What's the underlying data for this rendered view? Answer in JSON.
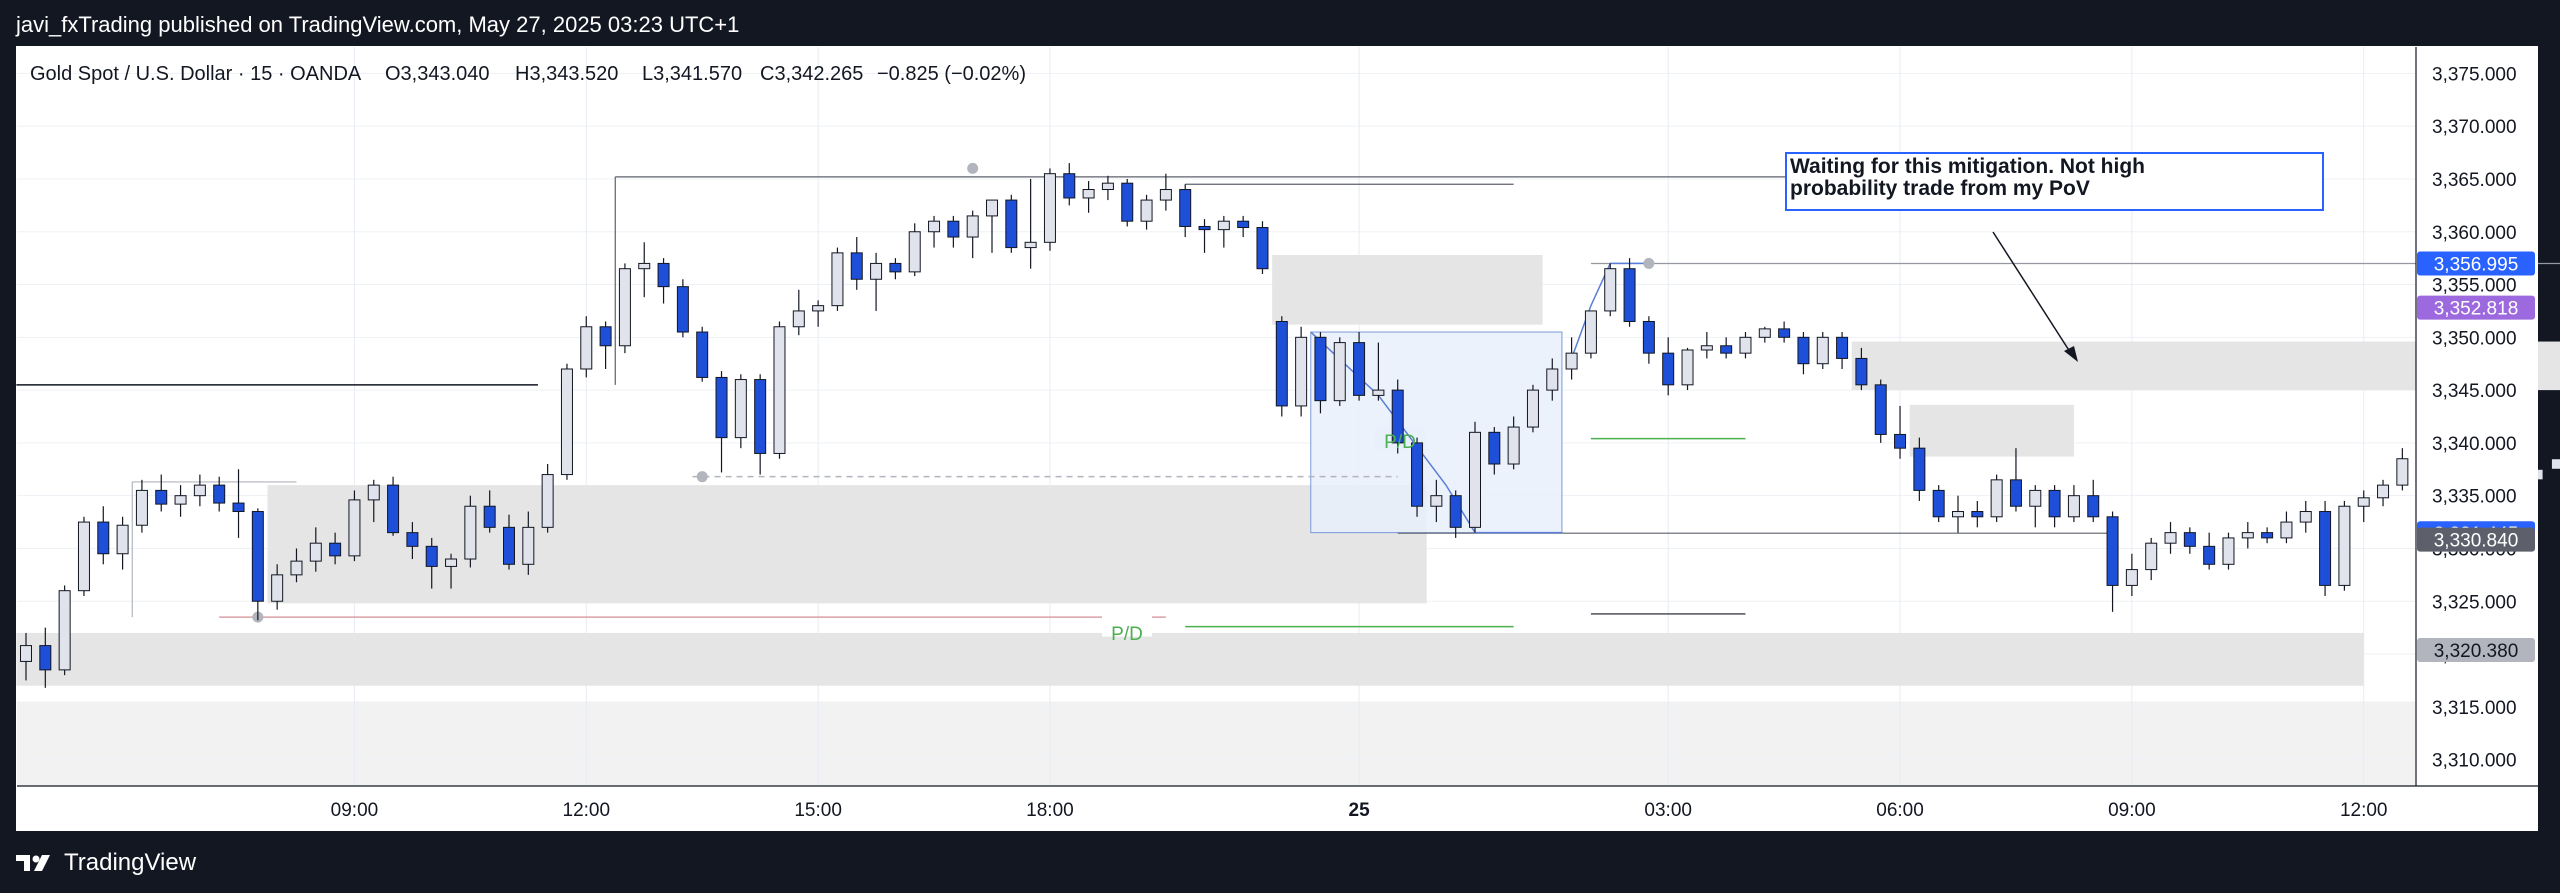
{
  "header": {
    "published_by": "javi_fxTrading published on TradingView.com, May 27, 2025 03:23 UTC+1"
  },
  "footer": {
    "brand": "TradingView"
  },
  "colors": {
    "bull_fill": "#e0e3eb",
    "bull_border": "#131722",
    "bear_fill": "#1e4fd8",
    "zone": "#dddddd",
    "pd_green": "#4caf50",
    "range_blue": "#5b7fd8",
    "label_blue": "#2962ff",
    "label_purple": "#9c6ade",
    "label_gray": "#5d606b",
    "label_gray_light": "#b2b5be"
  },
  "chart_data": {
    "type": "candlestick",
    "symbol_line": {
      "name": "Gold Spot / U.S. Dollar · 15 · OANDA",
      "open": "O3,343.040",
      "high": "H3,343.520",
      "low": "L3,341.570",
      "close": "C3,342.265",
      "change": "−0.825 (−0.02%)"
    },
    "ylim": [
      3307.5,
      3377.5
    ],
    "y_ticks": [
      "3,310.000",
      "3,315.000",
      "3,320.000",
      "3,325.000",
      "3,330.000",
      "3,335.000",
      "3,340.000",
      "3,345.000",
      "3,350.000",
      "3,355.000",
      "3,360.000",
      "3,365.000",
      "3,370.000",
      "3,375.000"
    ],
    "y_tick_values": [
      3310,
      3315,
      3320,
      3325,
      3330,
      3335,
      3340,
      3345,
      3350,
      3355,
      3360,
      3365,
      3370,
      3375
    ],
    "x_ticks": [
      "09:00",
      "12:00",
      "15:00",
      "18:00",
      "25",
      "03:00",
      "06:00",
      "09:00",
      "12:00",
      "15:00",
      "18:00"
    ],
    "x_tick_index": [
      17,
      29,
      41,
      53,
      69,
      85,
      97,
      109,
      121,
      133,
      145
    ],
    "price_labels": [
      {
        "text": "3,356.995",
        "value": 3356.995,
        "color": "blue"
      },
      {
        "text": "3,352.818",
        "value": 3352.818,
        "color": "purple"
      },
      {
        "text": "3,331.445",
        "value": 3331.445,
        "color": "blue"
      },
      {
        "text": "3,330.840",
        "value": 3330.84,
        "color": "gray"
      },
      {
        "text": "3,320.380",
        "value": 3320.38,
        "color": "graylight"
      }
    ],
    "annotation": "Waiting for this mitigation. Not high probability trade from my PoV",
    "pd_labels": [
      "P/D",
      "P/D"
    ],
    "candles": [
      [
        3319.3,
        3322.0,
        3317.5,
        3320.8
      ],
      [
        3320.8,
        3322.5,
        3316.8,
        3318.5
      ],
      [
        3318.5,
        3326.5,
        3318.0,
        3326.0
      ],
      [
        3326.0,
        3333.0,
        3325.5,
        3332.5
      ],
      [
        3332.5,
        3334.0,
        3328.5,
        3329.5
      ],
      [
        3329.5,
        3333.0,
        3328.0,
        3332.2
      ],
      [
        3332.2,
        3336.5,
        3331.5,
        3335.5
      ],
      [
        3335.5,
        3337.0,
        3333.5,
        3334.2
      ],
      [
        3334.2,
        3336.0,
        3333.0,
        3335.0
      ],
      [
        3335.0,
        3337.0,
        3334.0,
        3336.0
      ],
      [
        3336.0,
        3336.8,
        3333.5,
        3334.3
      ],
      [
        3334.3,
        3337.5,
        3331.0,
        3333.5
      ],
      [
        3333.5,
        3333.8,
        3323.2,
        3325.0
      ],
      [
        3325.0,
        3328.5,
        3324.2,
        3327.5
      ],
      [
        3327.5,
        3330.0,
        3326.8,
        3328.8
      ],
      [
        3328.8,
        3332.0,
        3327.8,
        3330.5
      ],
      [
        3330.5,
        3331.5,
        3328.5,
        3329.3
      ],
      [
        3329.3,
        3335.5,
        3328.8,
        3334.6
      ],
      [
        3334.6,
        3336.5,
        3332.5,
        3336.0
      ],
      [
        3336.0,
        3336.8,
        3331.2,
        3331.5
      ],
      [
        3331.5,
        3332.5,
        3329.0,
        3330.2
      ],
      [
        3330.2,
        3331.0,
        3326.2,
        3328.3
      ],
      [
        3328.3,
        3329.5,
        3326.2,
        3329.0
      ],
      [
        3329.0,
        3335.0,
        3328.2,
        3334.0
      ],
      [
        3334.0,
        3335.5,
        3331.5,
        3332.0
      ],
      [
        3332.0,
        3333.2,
        3328.0,
        3328.5
      ],
      [
        3328.5,
        3333.5,
        3327.5,
        3332.0
      ],
      [
        3332.0,
        3338.0,
        3331.5,
        3337.0
      ],
      [
        3337.0,
        3347.5,
        3336.5,
        3347.0
      ],
      [
        3347.0,
        3352.0,
        3346.2,
        3351.0
      ],
      [
        3351.0,
        3351.5,
        3347.0,
        3349.2
      ],
      [
        3349.2,
        3357.0,
        3348.5,
        3356.5
      ],
      [
        3356.5,
        3359.0,
        3353.8,
        3357.0
      ],
      [
        3357.0,
        3357.5,
        3353.2,
        3354.8
      ],
      [
        3354.8,
        3355.5,
        3350.0,
        3350.5
      ],
      [
        3350.5,
        3351.0,
        3345.8,
        3346.2
      ],
      [
        3346.2,
        3346.8,
        3337.2,
        3340.5
      ],
      [
        3340.5,
        3346.5,
        3339.5,
        3346.0
      ],
      [
        3346.0,
        3346.5,
        3337.0,
        3339.0
      ],
      [
        3339.0,
        3351.5,
        3338.5,
        3351.0
      ],
      [
        3351.0,
        3354.5,
        3350.2,
        3352.5
      ],
      [
        3352.5,
        3353.5,
        3351.0,
        3353.0
      ],
      [
        3353.0,
        3358.5,
        3352.5,
        3358.0
      ],
      [
        3358.0,
        3359.5,
        3354.5,
        3355.5
      ],
      [
        3355.5,
        3358.0,
        3352.5,
        3357.0
      ],
      [
        3357.0,
        3357.5,
        3355.5,
        3356.2
      ],
      [
        3356.2,
        3360.8,
        3355.8,
        3360.0
      ],
      [
        3360.0,
        3361.5,
        3358.5,
        3361.0
      ],
      [
        3361.0,
        3361.5,
        3358.5,
        3359.5
      ],
      [
        3359.5,
        3362.0,
        3357.5,
        3361.5
      ],
      [
        3361.5,
        3363.0,
        3358.0,
        3363.0
      ],
      [
        3363.0,
        3363.5,
        3358.0,
        3358.5
      ],
      [
        3358.5,
        3365.0,
        3356.5,
        3359.0
      ],
      [
        3359.0,
        3366.0,
        3358.2,
        3365.5
      ],
      [
        3365.5,
        3366.5,
        3362.5,
        3363.2
      ],
      [
        3363.2,
        3364.8,
        3361.8,
        3364.0
      ],
      [
        3364.0,
        3365.3,
        3363.0,
        3364.6
      ],
      [
        3364.6,
        3365.0,
        3360.5,
        3361.0
      ],
      [
        3361.0,
        3363.5,
        3360.2,
        3363.0
      ],
      [
        3363.0,
        3365.5,
        3362.0,
        3364.0
      ],
      [
        3364.0,
        3364.5,
        3359.5,
        3360.5
      ],
      [
        3360.5,
        3361.2,
        3358.0,
        3360.2
      ],
      [
        3360.2,
        3361.5,
        3358.5,
        3361.0
      ],
      [
        3361.0,
        3361.5,
        3359.5,
        3360.4
      ],
      [
        3360.4,
        3361.0,
        3356.0,
        3356.5
      ],
      [
        3351.5,
        3352.0,
        3342.5,
        3343.5
      ],
      [
        3343.5,
        3351.0,
        3342.5,
        3350.0
      ],
      [
        3350.0,
        3350.5,
        3342.8,
        3344.0
      ],
      [
        3344.0,
        3350.0,
        3343.5,
        3349.5
      ],
      [
        3349.5,
        3350.5,
        3344.0,
        3344.5
      ],
      [
        3344.5,
        3349.5,
        3344.0,
        3345.0
      ],
      [
        3345.0,
        3346.0,
        3339.0,
        3340.0
      ],
      [
        3340.0,
        3340.5,
        3333.0,
        3334.0
      ],
      [
        3334.0,
        3336.5,
        3332.5,
        3335.0
      ],
      [
        3335.0,
        3335.5,
        3331.0,
        3332.0
      ],
      [
        3332.0,
        3342.0,
        3331.5,
        3341.0
      ],
      [
        3341.0,
        3341.5,
        3337.0,
        3338.0
      ],
      [
        3338.0,
        3342.5,
        3337.5,
        3341.5
      ],
      [
        3341.5,
        3345.5,
        3341.0,
        3345.0
      ],
      [
        3345.0,
        3348.0,
        3344.0,
        3347.0
      ],
      [
        3347.0,
        3350.0,
        3346.0,
        3348.5
      ],
      [
        3348.5,
        3352.5,
        3348.0,
        3352.5
      ],
      [
        3352.5,
        3357.0,
        3352.0,
        3356.5
      ],
      [
        3356.5,
        3357.5,
        3351.0,
        3351.5
      ],
      [
        3351.5,
        3352.0,
        3347.5,
        3348.5
      ],
      [
        3348.5,
        3350.0,
        3344.5,
        3345.5
      ],
      [
        3345.5,
        3349.0,
        3345.0,
        3348.8
      ],
      [
        3348.8,
        3350.5,
        3348.0,
        3349.2
      ],
      [
        3349.2,
        3350.0,
        3348.0,
        3348.5
      ],
      [
        3348.5,
        3350.5,
        3348.0,
        3350.0
      ],
      [
        3350.0,
        3351.0,
        3349.5,
        3350.8
      ],
      [
        3350.8,
        3351.5,
        3349.5,
        3350.0
      ],
      [
        3350.0,
        3350.5,
        3346.5,
        3347.5
      ],
      [
        3347.5,
        3350.5,
        3347.0,
        3350.0
      ],
      [
        3350.0,
        3350.5,
        3347.0,
        3348.0
      ],
      [
        3348.0,
        3349.0,
        3345.0,
        3345.5
      ],
      [
        3345.5,
        3346.0,
        3340.0,
        3340.8
      ],
      [
        3340.8,
        3343.5,
        3338.5,
        3339.5
      ],
      [
        3339.5,
        3340.5,
        3334.5,
        3335.5
      ],
      [
        3335.5,
        3336.0,
        3332.5,
        3333.0
      ],
      [
        3333.0,
        3335.0,
        3331.5,
        3333.5
      ],
      [
        3333.5,
        3334.5,
        3332.0,
        3333.0
      ],
      [
        3333.0,
        3337.0,
        3332.5,
        3336.5
      ],
      [
        3336.5,
        3339.5,
        3333.5,
        3334.0
      ],
      [
        3334.0,
        3336.0,
        3332.0,
        3335.5
      ],
      [
        3335.5,
        3336.0,
        3332.0,
        3333.0
      ],
      [
        3333.0,
        3336.0,
        3332.5,
        3335.0
      ],
      [
        3335.0,
        3336.5,
        3332.5,
        3333.0
      ],
      [
        3333.0,
        3333.5,
        3324.0,
        3326.5
      ],
      [
        3326.5,
        3329.5,
        3325.5,
        3328.0
      ],
      [
        3328.0,
        3331.0,
        3327.0,
        3330.5
      ],
      [
        3330.5,
        3332.5,
        3329.5,
        3331.5
      ],
      [
        3331.5,
        3332.0,
        3329.5,
        3330.2
      ],
      [
        3330.2,
        3331.5,
        3328.0,
        3328.5
      ],
      [
        3328.5,
        3331.5,
        3328.0,
        3331.0
      ],
      [
        3331.0,
        3332.5,
        3330.0,
        3331.5
      ],
      [
        3331.5,
        3332.0,
        3330.5,
        3331.0
      ],
      [
        3331.0,
        3333.5,
        3330.5,
        3332.5
      ],
      [
        3332.5,
        3334.5,
        3331.5,
        3333.5
      ],
      [
        3333.5,
        3334.5,
        3325.5,
        3326.5
      ],
      [
        3326.5,
        3334.5,
        3326.0,
        3334.0
      ],
      [
        3334.0,
        3335.5,
        3332.5,
        3334.8
      ],
      [
        3334.8,
        3336.5,
        3334.0,
        3336.0
      ],
      [
        3336.0,
        3339.5,
        3335.5,
        3338.5
      ],
      [
        3338.5,
        3339.5,
        3334.5,
        3335.0
      ],
      [
        3335.0,
        3339.0,
        3334.5,
        3338.0
      ],
      [
        3338.0,
        3341.5,
        3337.0,
        3340.0
      ],
      [
        3340.0,
        3341.0,
        3337.0,
        3337.5
      ],
      [
        3337.5,
        3340.0,
        3336.5,
        3339.0
      ],
      [
        3339.0,
        3339.5,
        3335.5,
        3336.5
      ],
      [
        3336.5,
        3338.5,
        3336.0,
        3337.5
      ],
      [
        3337.5,
        3339.0,
        3336.5,
        3338.5
      ],
      [
        3338.5,
        3339.5,
        3337.0,
        3337.8
      ],
      [
        3337.8,
        3339.5,
        3337.0,
        3339.0
      ],
      [
        3339.0,
        3340.5,
        3338.0,
        3340.0
      ],
      [
        3340.0,
        3343.5,
        3339.5,
        3343.2
      ],
      [
        3343.2,
        3343.5,
        3341.5,
        3342.3
      ]
    ]
  }
}
